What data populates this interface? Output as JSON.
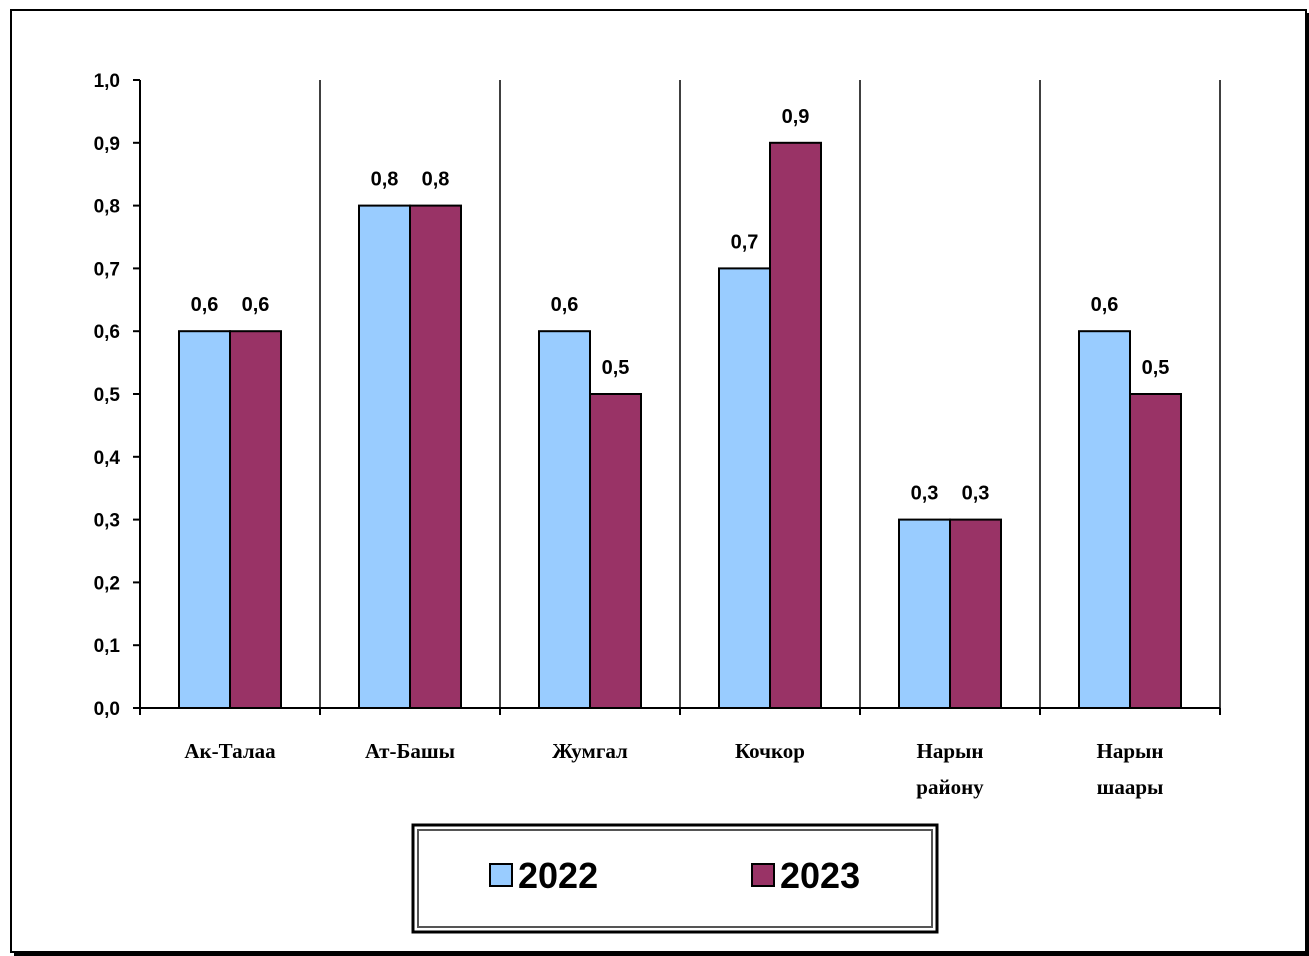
{
  "chart_data": {
    "type": "bar",
    "categories": [
      [
        "Ак-Талаа"
      ],
      [
        "Ат-Башы"
      ],
      [
        "Жумгал"
      ],
      [
        "Кочкор"
      ],
      [
        "Нарын",
        "району"
      ],
      [
        "Нарын",
        "шаары"
      ]
    ],
    "series": [
      {
        "name": "2022",
        "values": [
          0.6,
          0.8,
          0.6,
          0.7,
          0.3,
          0.6
        ],
        "labels": [
          "0,6",
          "0,8",
          "0,6",
          "0,7",
          "0,3",
          "0,6"
        ],
        "color": "#99ccff"
      },
      {
        "name": "2023",
        "values": [
          0.6,
          0.8,
          0.5,
          0.9,
          0.3,
          0.5
        ],
        "labels": [
          "0,6",
          "0,8",
          "0,5",
          "0,9",
          "0,3",
          "0,5"
        ],
        "color": "#993366"
      }
    ],
    "ylim": [
      0,
      1.0
    ],
    "yticks": [
      "0,0",
      "0,1",
      "0,2",
      "0,3",
      "0,4",
      "0,5",
      "0,6",
      "0,7",
      "0,8",
      "0,9",
      "1,0"
    ],
    "grid": "vertical separators between categories",
    "legend_position": "bottom",
    "title": "",
    "xlabel": "",
    "ylabel": ""
  }
}
